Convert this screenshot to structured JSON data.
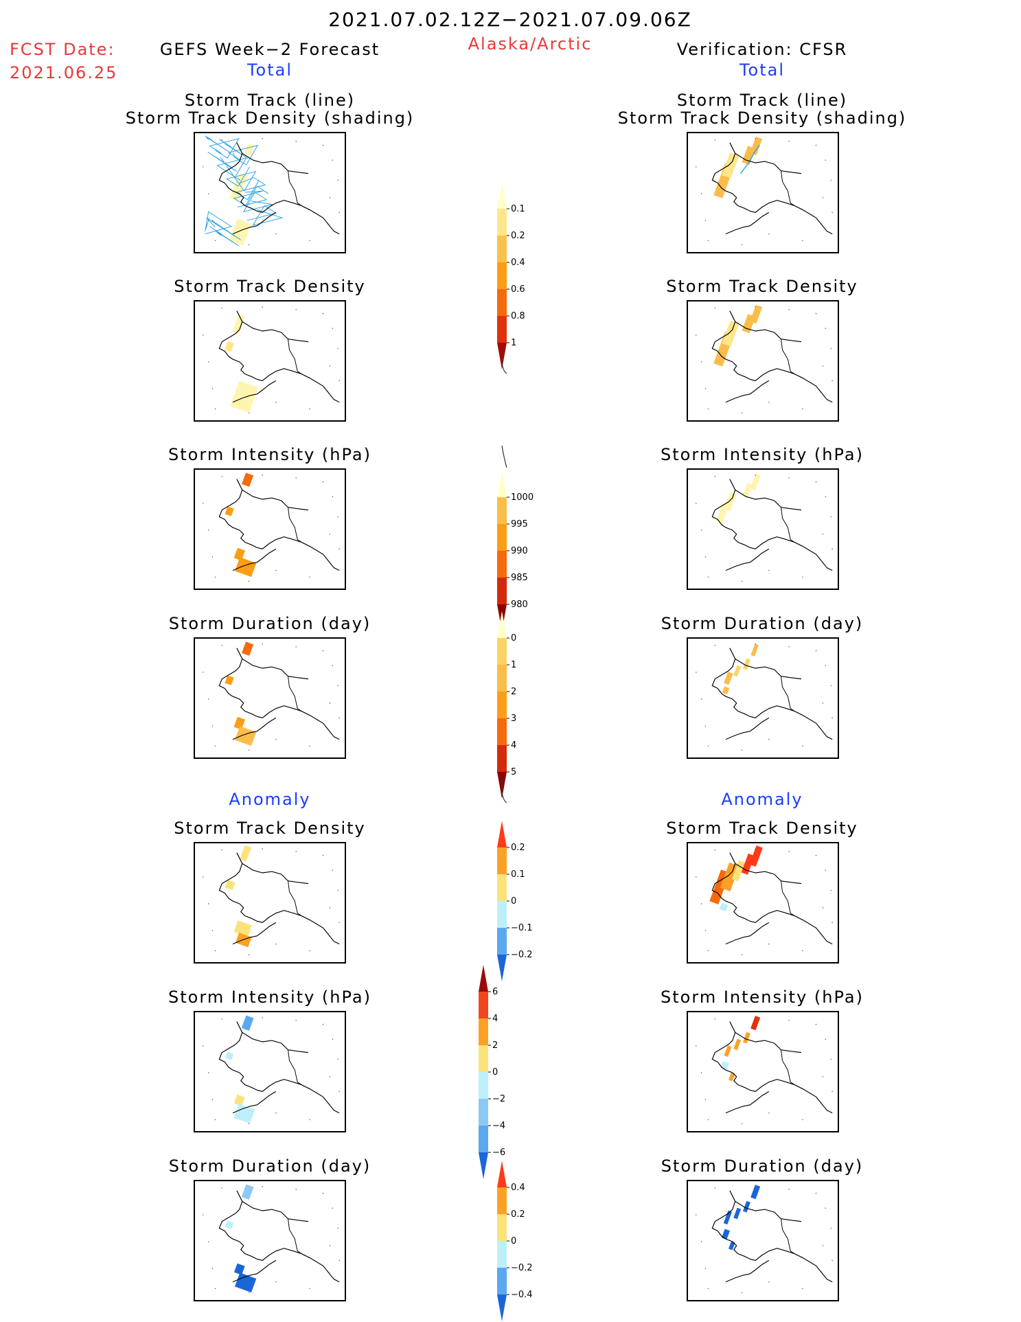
{
  "header": {
    "period": "2021.07.02.12Z−2021.07.09.06Z",
    "region": "Alaska/Arctic",
    "fcst_label": "FCST Date:",
    "fcst_date": "2021.06.25",
    "left_title": "GEFS Week−2 Forecast",
    "right_title": "Verification: CFSR",
    "total_label": "Total",
    "anomaly_label": "Anomaly"
  },
  "panel_titles": {
    "track_line": "Storm Track (line)",
    "track_shading": "Storm Track Density (shading)",
    "density": "Storm Track Density",
    "intensity": "Storm Intensity (hPa)",
    "duration": "Storm Duration (day)"
  },
  "colors": {
    "title_red": "#e8383a",
    "title_blue": "#1a3cff",
    "track_line": "#2ea3e6"
  },
  "chart_data": [
    {
      "type": "heatmap",
      "panel": "forecast-total-track",
      "title": "Storm Track (line) / Storm Track Density (shading)",
      "note": "Map of Alaska with many blue storm track lines over the Bering Sea and western Alaska; light yellow density shading"
    },
    {
      "type": "heatmap",
      "panel": "colorbar-density",
      "levels": [
        0.1,
        0.2,
        0.4,
        0.6,
        0.8,
        1
      ],
      "colors": [
        "#ffffc8",
        "#ffe68a",
        "#fbc14d",
        "#fb9e14",
        "#f56a0a",
        "#e0320c",
        "#a80a0a"
      ]
    },
    {
      "type": "heatmap",
      "panel": "colorbar-intensity",
      "levels": [
        1000,
        995,
        990,
        985,
        980
      ],
      "colors": [
        "#ffffc8",
        "#fbbd4a",
        "#fb9e14",
        "#f56a0a",
        "#d32a0c",
        "#8a0606"
      ]
    },
    {
      "type": "heatmap",
      "panel": "colorbar-duration",
      "levels": [
        0,
        1,
        2,
        3,
        4,
        5
      ],
      "colors": [
        "#ffffc8",
        "#fbd465",
        "#fbbd4a",
        "#fb9e14",
        "#f56a0a",
        "#d32a0c",
        "#8a0606"
      ]
    },
    {
      "type": "heatmap",
      "panel": "colorbar-anom-density",
      "levels": [
        0.2,
        0.1,
        0,
        -0.1,
        -0.2
      ],
      "colors": [
        "#ff3a1a",
        "#fba226",
        "#fce27a",
        "#bdeffa",
        "#5aa8ef",
        "#1a66d8"
      ]
    },
    {
      "type": "heatmap",
      "panel": "colorbar-anom-intensity",
      "levels": [
        6,
        4,
        2,
        0,
        -2,
        -4,
        -6
      ],
      "colors": [
        "#9a0a0a",
        "#f2461c",
        "#fba226",
        "#fce27a",
        "#bdeffa",
        "#8cc9f5",
        "#5aa8ef",
        "#1a66d8"
      ]
    },
    {
      "type": "heatmap",
      "panel": "colorbar-anom-duration",
      "levels": [
        0.4,
        0.2,
        0,
        -0.2,
        -0.4
      ],
      "colors": [
        "#ff3a1a",
        "#fba226",
        "#fce27a",
        "#bdeffa",
        "#5aa8ef",
        "#1a66d8"
      ]
    }
  ]
}
